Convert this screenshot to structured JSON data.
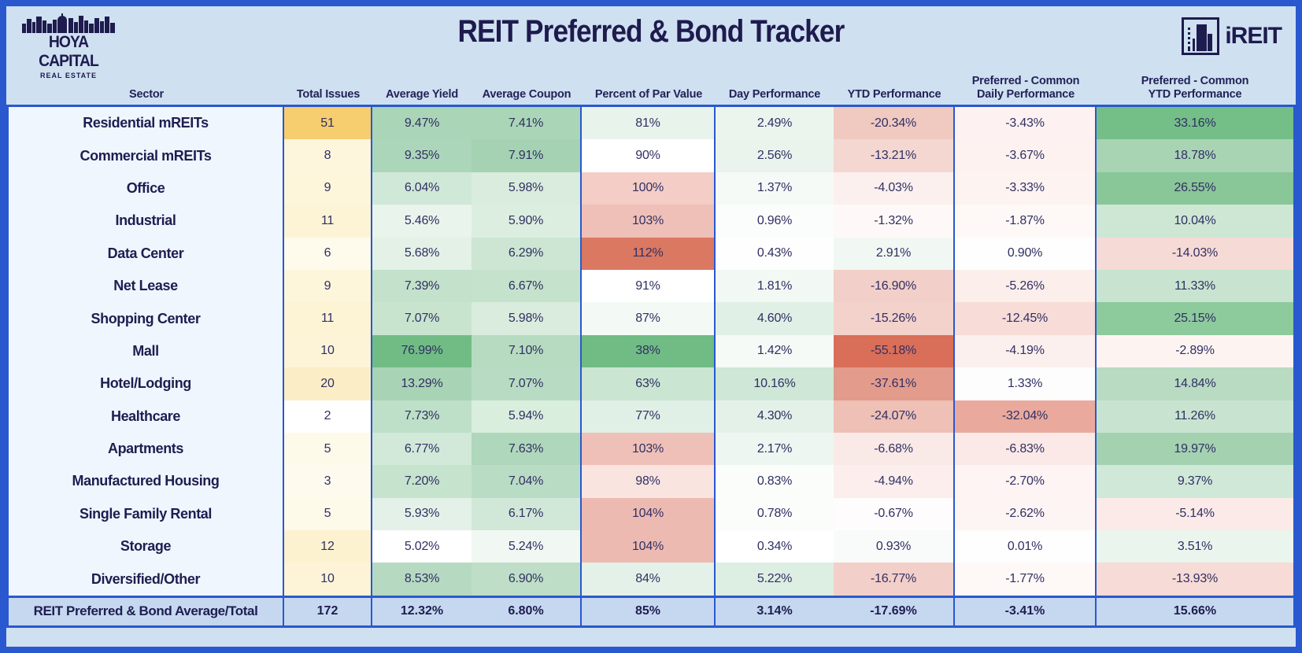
{
  "header": {
    "title": "REIT Preferred & Bond Tracker",
    "hoya_logo": {
      "line1": "HOYA CAPITAL",
      "line2": "REAL ESTATE"
    },
    "ireit_logo": {
      "text": "iREIT"
    }
  },
  "colors": {
    "border_blue": "#2a58cf",
    "band_bg": "#cfe0f1",
    "navy_text": "#1e1b4e",
    "sector_cell_bg": "#f0f6fe",
    "total_row_bg": "#c5d8f0"
  },
  "chart_data": {
    "type": "table",
    "title": "REIT Preferred & Bond Tracker",
    "columns": [
      "Sector",
      "Total Issues",
      "Average Yield",
      "Average Coupon",
      "Percent of Par Value",
      "Day Performance",
      "YTD Performance",
      "Preferred - Common\nDaily Performance",
      "Preferred - Common\nYTD Performance"
    ],
    "rows": [
      {
        "sector": "Residential mREITs",
        "values": [
          "51",
          "9.47%",
          "7.41%",
          "81%",
          "2.49%",
          "-20.34%",
          "-3.43%",
          "33.16%"
        ],
        "cell_colors": [
          "#f6cd6f",
          "#aad5b7",
          "#aad5b7",
          "#e7f3eb",
          "#ebf5ee",
          "#f0c9c1",
          "#fdf2f1",
          "#74bf87"
        ]
      },
      {
        "sector": "Commercial mREITs",
        "values": [
          "8",
          "9.35%",
          "7.91%",
          "90%",
          "2.56%",
          "-13.21%",
          "-3.67%",
          "18.78%"
        ],
        "cell_colors": [
          "#fdf6dd",
          "#acd6b9",
          "#a4d2b2",
          "#ffffff",
          "#eaf4ed",
          "#f4d7d1",
          "#fdf2f0",
          "#a8d4b4"
        ]
      },
      {
        "sector": "Office",
        "values": [
          "9",
          "6.04%",
          "5.98%",
          "100%",
          "1.37%",
          "-4.03%",
          "-3.33%",
          "26.55%"
        ],
        "cell_colors": [
          "#fdf6db",
          "#d0e8d7",
          "#d9ecdd",
          "#f3cdc6",
          "#f5faf7",
          "#fcf0ee",
          "#fdf3f1",
          "#89c698"
        ]
      },
      {
        "sector": "Industrial",
        "values": [
          "11",
          "5.46%",
          "5.90%",
          "103%",
          "0.96%",
          "-1.32%",
          "-1.87%",
          "10.04%"
        ],
        "cell_colors": [
          "#fdf4d6",
          "#e9f4ec",
          "#dceedf",
          "#efc0b8",
          "#fafdfb",
          "#fef9f8",
          "#fef8f7",
          "#cde7d4"
        ]
      },
      {
        "sector": "Data Center",
        "values": [
          "6",
          "5.68%",
          "6.29%",
          "112%",
          "0.43%",
          "2.91%",
          "0.90%",
          "-14.03%"
        ],
        "cell_colors": [
          "#fefbec",
          "#e3f1e7",
          "#cce6d3",
          "#db7862",
          "#fdfefd",
          "#f1f8f3",
          "#fdfefd",
          "#f6dad5"
        ]
      },
      {
        "sector": "Net Lease",
        "values": [
          "9",
          "7.39%",
          "6.67%",
          "91%",
          "1.81%",
          "-16.90%",
          "-5.26%",
          "11.33%"
        ],
        "cell_colors": [
          "#fdf6db",
          "#c3e1cb",
          "#c5e2cc",
          "#ffffff",
          "#f2f8f4",
          "#f2cfc8",
          "#fceeeb",
          "#c8e4d0"
        ]
      },
      {
        "sector": "Shopping Center",
        "values": [
          "11",
          "7.07%",
          "5.98%",
          "87%",
          "4.60%",
          "-15.26%",
          "-12.45%",
          "25.15%"
        ],
        "cell_colors": [
          "#fdf4d6",
          "#c8e4cf",
          "#d9ecdd",
          "#f3f9f5",
          "#e1f0e6",
          "#f3d2cb",
          "#f7dcd7",
          "#8dca9c"
        ]
      },
      {
        "sector": "Mall",
        "values": [
          "10",
          "76.99%",
          "7.10%",
          "38%",
          "1.42%",
          "-55.18%",
          "-4.19%",
          "-2.89%"
        ],
        "cell_colors": [
          "#fdf4d8",
          "#70bc84",
          "#b6dbc1",
          "#70bc84",
          "#f5faf6",
          "#d96f58",
          "#fcf0ee",
          "#fdf4f2"
        ]
      },
      {
        "sector": "Hotel/Lodging",
        "values": [
          "20",
          "13.29%",
          "7.07%",
          "63%",
          "10.16%",
          "-37.61%",
          "1.33%",
          "14.84%"
        ],
        "cell_colors": [
          "#fbeec6",
          "#a8d4b5",
          "#b8dcc3",
          "#cae5d2",
          "#cee7d6",
          "#e39b8b",
          "#fcfdfc",
          "#b8dbc2"
        ]
      },
      {
        "sector": "Healthcare",
        "values": [
          "2",
          "7.73%",
          "5.94%",
          "77%",
          "4.30%",
          "-24.07%",
          "-32.04%",
          "11.26%"
        ],
        "cell_colors": [
          "#ffffff",
          "#bedfc8",
          "#daeede",
          "#e1f0e6",
          "#e4f1e8",
          "#eec0b6",
          "#e9aa9d",
          "#c8e4d0"
        ]
      },
      {
        "sector": "Apartments",
        "values": [
          "5",
          "6.77%",
          "7.63%",
          "103%",
          "2.17%",
          "-6.68%",
          "-6.83%",
          "19.97%"
        ],
        "cell_colors": [
          "#fefaea",
          "#d2e9d9",
          "#afd7bb",
          "#efc0b8",
          "#edf6f0",
          "#faeae7",
          "#fae9e6",
          "#a4d2b1"
        ]
      },
      {
        "sector": "Manufactured Housing",
        "values": [
          "3",
          "7.20%",
          "7.04%",
          "98%",
          "0.83%",
          "-4.94%",
          "-2.70%",
          "9.37%"
        ],
        "cell_colors": [
          "#fefbee",
          "#c6e3cd",
          "#b9dcc4",
          "#f9e4e0",
          "#fbfdfb",
          "#fbeeec",
          "#fdf4f3",
          "#d0e8d7"
        ]
      },
      {
        "sector": "Single Family Rental",
        "values": [
          "5",
          "5.93%",
          "6.17%",
          "104%",
          "0.78%",
          "-0.67%",
          "-2.62%",
          "-5.14%"
        ],
        "cell_colors": [
          "#fefaea",
          "#e4f1e8",
          "#d1e8d8",
          "#edbab1",
          "#fbfdfb",
          "#fefcfc",
          "#fdf5f3",
          "#fbeae7"
        ]
      },
      {
        "sector": "Storage",
        "values": [
          "12",
          "5.02%",
          "5.24%",
          "104%",
          "0.34%",
          "0.93%",
          "0.01%",
          "3.51%"
        ],
        "cell_colors": [
          "#fcf2d0",
          "#ffffff",
          "#f1f8f3",
          "#edbab1",
          "#fefffe",
          "#f8fbf9",
          "#fefefe",
          "#eaf5ed"
        ]
      },
      {
        "sector": "Diversified/Other",
        "values": [
          "10",
          "8.53%",
          "6.90%",
          "84%",
          "5.22%",
          "-16.77%",
          "-1.77%",
          "-13.93%"
        ],
        "cell_colors": [
          "#fdf4d8",
          "#b6dac1",
          "#bedec7",
          "#e4f1e9",
          "#ddeee3",
          "#f2cfc9",
          "#fef8f7",
          "#f6dbd6"
        ]
      }
    ],
    "total_row": {
      "label": "REIT Preferred & Bond Average/Total",
      "values": [
        "172",
        "12.32%",
        "6.80%",
        "85%",
        "3.14%",
        "-17.69%",
        "-3.41%",
        "15.66%"
      ]
    }
  }
}
